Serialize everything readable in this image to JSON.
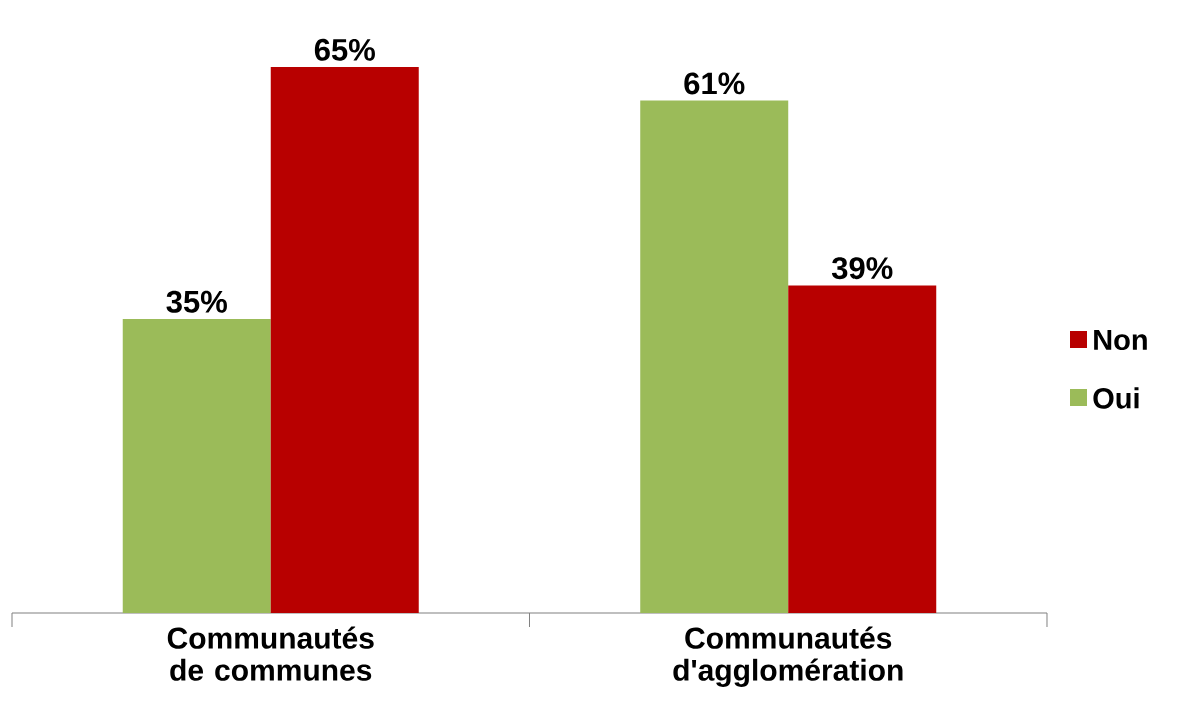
{
  "chart_data": {
    "type": "bar",
    "categories": [
      "Communautés de communes",
      "Communautés d'agglomération"
    ],
    "series": [
      {
        "name": "Oui",
        "color": "#9bbb59",
        "values": [
          35,
          61
        ],
        "value_labels": [
          "35%",
          "61%"
        ]
      },
      {
        "name": "Non",
        "color": "#b80000",
        "values": [
          65,
          39
        ],
        "value_labels": [
          "65%",
          "39%"
        ]
      }
    ],
    "legend": "right"
  }
}
